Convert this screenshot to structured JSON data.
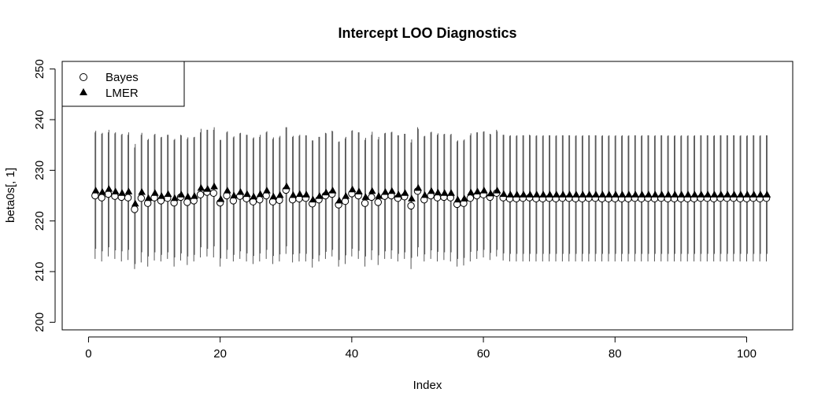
{
  "chart_data": {
    "type": "scatter",
    "title": "Intercept LOO Diagnostics",
    "xlabel": "Index",
    "ylabel": "beta0s[, 1]",
    "xlim": [
      -4,
      107
    ],
    "ylim": [
      198.5,
      251.5
    ],
    "xticks": [
      0,
      20,
      40,
      60,
      80,
      100
    ],
    "xtick_labels": [
      "0",
      "20",
      "40",
      "60",
      "80",
      "100"
    ],
    "yticks": [
      200,
      210,
      220,
      230,
      240,
      250
    ],
    "ytick_labels": [
      "200",
      "210",
      "220",
      "230",
      "240",
      "250"
    ],
    "legend": {
      "position": "top-left",
      "entries": [
        {
          "label": "Bayes",
          "marker": "open-circle"
        },
        {
          "label": "LMER",
          "marker": "filled-triangle"
        }
      ]
    },
    "series": [
      {
        "name": "Bayes",
        "marker": "open-circle",
        "x": [
          1,
          2,
          3,
          4,
          5,
          6,
          7,
          8,
          9,
          10,
          11,
          12,
          13,
          14,
          15,
          16,
          17,
          18,
          19,
          20,
          21,
          22,
          23,
          24,
          25,
          26,
          27,
          28,
          29,
          30,
          31,
          32,
          33,
          34,
          35,
          36,
          37,
          38,
          39,
          40,
          41,
          42,
          43,
          44,
          45,
          46,
          47,
          48,
          49,
          50,
          51,
          52,
          53,
          54,
          55,
          56,
          57,
          58,
          59,
          60,
          61,
          62,
          63,
          64,
          65,
          66,
          67,
          68,
          69,
          70,
          71,
          72,
          73,
          74,
          75,
          76,
          77,
          78,
          79,
          80,
          81,
          82,
          83,
          84,
          85,
          86,
          87,
          88,
          89,
          90,
          91,
          92,
          93,
          94,
          95,
          96,
          97,
          98,
          99,
          100,
          101,
          102,
          103
        ],
        "y": [
          225.0,
          224.6,
          225.3,
          224.9,
          224.7,
          224.6,
          222.3,
          224.5,
          223.5,
          224.6,
          224.0,
          224.5,
          223.6,
          224.7,
          223.7,
          224.0,
          225.2,
          225.7,
          225.5,
          223.6,
          225.0,
          224.0,
          224.9,
          224.4,
          223.8,
          224.2,
          225.0,
          223.8,
          224.1,
          226.1,
          224.2,
          224.4,
          224.5,
          223.4,
          224.2,
          225.0,
          225.3,
          223.2,
          223.9,
          225.4,
          225.0,
          223.5,
          224.7,
          223.7,
          224.9,
          225.0,
          224.5,
          224.8,
          223.0,
          225.9,
          224.2,
          225.0,
          224.6,
          224.7,
          224.6,
          223.3,
          223.5,
          224.5,
          225.0,
          225.2,
          224.7,
          225.5,
          224.6,
          224.4,
          224.4,
          224.5,
          224.6,
          224.4,
          224.4,
          224.5,
          224.4,
          224.5,
          224.5,
          224.4,
          224.4,
          224.5,
          224.5,
          224.4,
          224.4,
          224.4,
          224.4,
          224.4,
          224.5,
          224.4,
          224.5,
          224.4,
          224.5,
          224.4,
          224.4,
          224.4,
          224.4,
          224.4,
          224.5,
          224.5,
          224.4,
          224.5,
          224.5,
          224.5,
          224.4,
          224.4,
          224.5,
          224.4,
          224.5
        ]
      },
      {
        "name": "LMER",
        "marker": "filled-triangle",
        "x": [
          1.1,
          2.1,
          3.1,
          4.1,
          5.1,
          6.1,
          7.1,
          8.1,
          9.1,
          10.1,
          11.1,
          12.1,
          13.1,
          14.1,
          15.1,
          16.1,
          17.1,
          18.1,
          19.1,
          20.1,
          21.1,
          22.1,
          23.1,
          24.1,
          25.1,
          26.1,
          27.1,
          28.1,
          29.1,
          30.1,
          31.1,
          32.1,
          33.1,
          34.1,
          35.1,
          36.1,
          37.1,
          38.1,
          39.1,
          40.1,
          41.1,
          42.1,
          43.1,
          44.1,
          45.1,
          46.1,
          47.1,
          48.1,
          49.1,
          50.1,
          51.1,
          52.1,
          53.1,
          54.1,
          55.1,
          56.1,
          57.1,
          58.1,
          59.1,
          60.1,
          61.1,
          62.1,
          63.1,
          64.1,
          65.1,
          66.1,
          67.1,
          68.1,
          69.1,
          70.1,
          71.1,
          72.1,
          73.1,
          74.1,
          75.1,
          76.1,
          77.1,
          78.1,
          79.1,
          80.1,
          81.1,
          82.1,
          83.1,
          84.1,
          85.1,
          86.1,
          87.1,
          88.1,
          89.1,
          90.1,
          91.1,
          92.1,
          93.1,
          94.1,
          95.1,
          96.1,
          97.1,
          98.1,
          99.1,
          100.1,
          101.1,
          102.1,
          103.1
        ],
        "y": [
          226.0,
          225.7,
          226.3,
          225.8,
          225.5,
          225.8,
          223.4,
          225.7,
          224.5,
          225.5,
          224.9,
          225.3,
          224.5,
          225.2,
          224.8,
          224.9,
          226.5,
          226.3,
          226.8,
          224.3,
          226.0,
          225.0,
          225.7,
          225.3,
          224.8,
          225.3,
          226.0,
          224.8,
          225.1,
          226.8,
          225.1,
          225.3,
          225.2,
          224.2,
          224.9,
          225.6,
          226.0,
          224.0,
          224.9,
          226.2,
          225.8,
          224.7,
          225.9,
          224.9,
          225.7,
          225.9,
          225.2,
          225.5,
          224.4,
          226.5,
          225.1,
          225.9,
          225.6,
          225.5,
          225.5,
          224.2,
          224.4,
          225.6,
          225.8,
          226.0,
          225.4,
          226.0,
          225.3,
          225.2,
          225.2,
          225.2,
          225.2,
          225.2,
          225.2,
          225.2,
          225.2,
          225.2,
          225.2,
          225.2,
          225.2,
          225.2,
          225.2,
          225.2,
          225.2,
          225.2,
          225.2,
          225.2,
          225.2,
          225.2,
          225.2,
          225.2,
          225.2,
          225.2,
          225.2,
          225.2,
          225.2,
          225.2,
          225.2,
          225.2,
          225.2,
          225.2,
          225.2,
          225.2,
          225.2,
          225.2,
          225.2,
          225.2,
          225.2
        ]
      }
    ],
    "intervals": {
      "note": "vertical interval lines, two per index (Bayes and LMER)",
      "bayes_lower": [
        212.5,
        212.0,
        213.0,
        212.5,
        212.0,
        212.3,
        210.5,
        211.8,
        211.0,
        212.2,
        212.0,
        212.5,
        211.0,
        212.2,
        211.3,
        212.0,
        212.8,
        213.0,
        212.8,
        211.0,
        212.5,
        212.0,
        212.5,
        212.0,
        211.5,
        212.0,
        212.5,
        211.5,
        212.0,
        213.5,
        211.8,
        212.0,
        212.0,
        210.8,
        212.0,
        212.5,
        213.0,
        211.0,
        211.5,
        213.0,
        212.5,
        211.0,
        212.3,
        211.3,
        212.5,
        212.5,
        212.0,
        212.5,
        210.5,
        213.0,
        212.0,
        212.5,
        212.0,
        212.3,
        212.0,
        211.0,
        211.2,
        212.0,
        212.5,
        212.8,
        212.3,
        213.0,
        212.2,
        212.0,
        212.0,
        212.0,
        212.0,
        212.0,
        212.0,
        212.0,
        212.0,
        212.0,
        212.0,
        212.0,
        212.0,
        212.0,
        212.0,
        212.0,
        212.0,
        212.0,
        212.0,
        212.0,
        212.0,
        212.0,
        212.0,
        212.0,
        212.0,
        212.0,
        212.0,
        212.0,
        212.0,
        212.0,
        212.0,
        212.0,
        212.0,
        212.0,
        212.0,
        212.0,
        212.0,
        212.0,
        212.0,
        212.0,
        212.0
      ],
      "bayes_upper": [
        237.5,
        237.2,
        237.5,
        237.3,
        237.0,
        237.0,
        234.5,
        237.0,
        236.0,
        237.0,
        236.5,
        237.0,
        236.0,
        237.0,
        236.2,
        236.5,
        237.5,
        238.0,
        238.0,
        236.0,
        237.5,
        236.5,
        237.3,
        237.0,
        236.3,
        236.6,
        237.5,
        236.2,
        236.5,
        238.5,
        236.6,
        236.8,
        236.9,
        235.9,
        236.6,
        237.4,
        237.8,
        235.6,
        236.3,
        237.8,
        237.5,
        236.0,
        237.0,
        236.1,
        237.3,
        237.5,
        236.9,
        237.2,
        235.5,
        238.5,
        236.7,
        237.5,
        237.0,
        237.1,
        237.0,
        235.7,
        235.9,
        236.9,
        237.5,
        237.6,
        237.2,
        238.0,
        237.0,
        236.8,
        236.8,
        236.9,
        237.0,
        236.8,
        236.8,
        236.9,
        236.8,
        236.9,
        236.9,
        236.8,
        236.8,
        236.9,
        236.9,
        236.8,
        236.8,
        236.8,
        236.8,
        236.8,
        236.9,
        236.8,
        236.9,
        236.8,
        236.9,
        236.8,
        236.8,
        236.8,
        236.8,
        236.8,
        236.9,
        236.9,
        236.8,
        236.9,
        236.9,
        236.9,
        236.8,
        236.8,
        236.9,
        236.8,
        236.9
      ],
      "lmer_lower": [
        214.5,
        214.0,
        214.8,
        214.2,
        214.0,
        214.3,
        211.5,
        213.8,
        213.0,
        213.8,
        213.3,
        213.8,
        212.8,
        213.6,
        213.0,
        213.3,
        214.8,
        214.5,
        215.0,
        212.6,
        214.3,
        213.3,
        214.0,
        213.6,
        213.1,
        213.6,
        214.3,
        213.1,
        213.4,
        215.0,
        213.4,
        213.6,
        213.5,
        212.5,
        213.2,
        213.9,
        214.3,
        212.3,
        213.2,
        214.5,
        214.1,
        213.0,
        214.2,
        213.2,
        214.0,
        214.2,
        213.5,
        213.8,
        212.7,
        214.8,
        213.4,
        214.2,
        213.9,
        213.8,
        213.8,
        212.5,
        212.7,
        213.9,
        214.1,
        214.3,
        213.7,
        214.3,
        213.6,
        213.5,
        213.5,
        213.5,
        213.5,
        213.5,
        213.5,
        213.5,
        213.5,
        213.5,
        213.5,
        213.5,
        213.5,
        213.5,
        213.5,
        213.5,
        213.5,
        213.5,
        213.5,
        213.5,
        213.5,
        213.5,
        213.5,
        213.5,
        213.5,
        213.5,
        213.5,
        213.5,
        213.5,
        213.5,
        213.5,
        213.5,
        213.5,
        213.5,
        213.5,
        213.5,
        213.5,
        213.5,
        213.5,
        213.5,
        213.5
      ],
      "lmer_upper": [
        237.8,
        237.4,
        238.0,
        237.5,
        237.2,
        237.5,
        235.2,
        237.4,
        236.2,
        237.2,
        236.6,
        237.0,
        236.2,
        236.9,
        236.5,
        236.6,
        238.2,
        238.0,
        238.5,
        236.0,
        237.7,
        236.7,
        237.4,
        237.0,
        236.5,
        237.0,
        237.7,
        236.5,
        236.8,
        238.5,
        236.8,
        237.0,
        236.9,
        235.9,
        236.6,
        237.3,
        237.7,
        235.7,
        236.6,
        237.9,
        237.5,
        236.4,
        237.6,
        236.6,
        237.4,
        237.6,
        236.9,
        237.2,
        236.1,
        238.2,
        236.8,
        237.6,
        237.3,
        237.2,
        237.2,
        235.9,
        236.1,
        237.3,
        237.5,
        237.7,
        237.1,
        237.7,
        237.0,
        236.9,
        236.9,
        236.9,
        236.9,
        236.9,
        236.9,
        236.9,
        236.9,
        236.9,
        236.9,
        236.9,
        236.9,
        236.9,
        236.9,
        236.9,
        236.9,
        236.9,
        236.9,
        236.9,
        236.9,
        236.9,
        236.9,
        236.9,
        236.9,
        236.9,
        236.9,
        236.9,
        236.9,
        236.9,
        236.9,
        236.9,
        236.9,
        236.9,
        236.9,
        236.9,
        236.9,
        236.9,
        236.9,
        236.9,
        236.9
      ]
    },
    "grid": false
  }
}
